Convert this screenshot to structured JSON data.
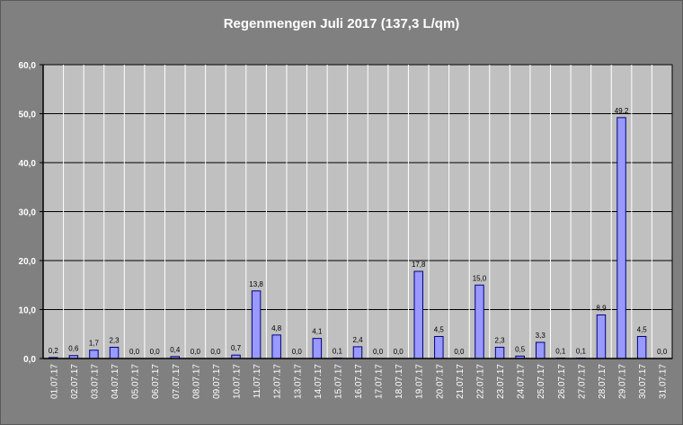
{
  "chart_data": {
    "type": "bar",
    "title": "Regenmengen Juli 2017 (137,3 L/qm)",
    "xlabel": "",
    "ylabel": "",
    "ylim": [
      0,
      60
    ],
    "yticks": [
      "0,0",
      "10,0",
      "20,0",
      "30,0",
      "40,0",
      "50,0",
      "60,0"
    ],
    "grid": true,
    "legend": "none",
    "categories": [
      "01.07.17",
      "02.07.17",
      "03.07.17",
      "04.07.17",
      "05.07.17",
      "06.07.17",
      "07.07.17",
      "08.07.17",
      "09.07.17",
      "10.07.17",
      "11.07.17",
      "12.07.17",
      "13.07.17",
      "14.07.17",
      "15.07.17",
      "16.07.17",
      "17.07.17",
      "18.07.17",
      "19.07.17",
      "20.07.17",
      "21.07.17",
      "22.07.17",
      "23.07.17",
      "24.07.17",
      "25.07.17",
      "26.07.17",
      "27.07.17",
      "28.07.17",
      "29.07.17",
      "30.07.17",
      "31.07.17"
    ],
    "values": [
      0.2,
      0.6,
      1.7,
      2.3,
      0.0,
      0.0,
      0.4,
      0.0,
      0.0,
      0.7,
      13.8,
      4.8,
      0.0,
      4.1,
      0.1,
      2.4,
      0.0,
      0.0,
      17.8,
      4.5,
      0.0,
      15.0,
      2.3,
      0.5,
      3.3,
      0.1,
      0.1,
      8.9,
      49.2,
      4.5,
      0.0
    ],
    "data_labels": [
      "0,2",
      "0,6",
      "1,7",
      "2,3",
      "0,0",
      "0,0",
      "0,4",
      "0,0",
      "0,0",
      "0,7",
      "13,8",
      "4,8",
      "0,0",
      "4,1",
      "0,1",
      "2,4",
      "0,0",
      "0,0",
      "17,8",
      "4,5",
      "0,0",
      "15,0",
      "2,3",
      "0,5",
      "3,3",
      "0,1",
      "0,1",
      "8,9",
      "49,2",
      "4,5",
      "0,0"
    ],
    "colors": {
      "background": "#808080",
      "plot_area": "#c0c0c0",
      "bar_fill": "#9999ff",
      "bar_stroke": "#000080",
      "grid": "#000000"
    }
  }
}
